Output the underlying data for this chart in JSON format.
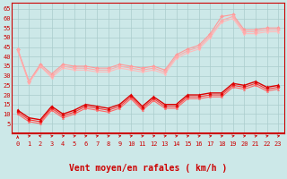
{
  "bg_color": "#cce8e8",
  "grid_color": "#aacccc",
  "xlabel": "Vent moyen/en rafales ( km/h )",
  "x_values": [
    0,
    1,
    2,
    3,
    4,
    5,
    6,
    7,
    8,
    9,
    10,
    11,
    12,
    13,
    14,
    15,
    16,
    17,
    18,
    19,
    20,
    21,
    22,
    23
  ],
  "ylim": [
    0,
    68
  ],
  "yticks": [
    5,
    10,
    15,
    20,
    25,
    30,
    35,
    40,
    45,
    50,
    55,
    60,
    65
  ],
  "series": [
    {
      "name": "gust_max",
      "y": [
        44,
        27,
        36,
        31,
        36,
        35,
        35,
        34,
        34,
        36,
        35,
        34,
        35,
        33,
        41,
        44,
        46,
        52,
        61,
        62,
        54,
        54,
        55,
        55
      ],
      "color": "#ff9999",
      "lw": 0.8,
      "marker": "D",
      "ms": 2.0,
      "zorder": 3
    },
    {
      "name": "gust_mid",
      "y": [
        44,
        27,
        35,
        30,
        35,
        34,
        34,
        33,
        33,
        35,
        34,
        33,
        34,
        32,
        40,
        43,
        45,
        51,
        59,
        61,
        53,
        53,
        54,
        54
      ],
      "color": "#ffaaaa",
      "lw": 0.8,
      "marker": "D",
      "ms": 2.0,
      "zorder": 3
    },
    {
      "name": "gust_low",
      "y": [
        43,
        26,
        35,
        29,
        34,
        33,
        33,
        32,
        32,
        34,
        33,
        32,
        33,
        31,
        39,
        42,
        44,
        50,
        58,
        60,
        52,
        52,
        53,
        53
      ],
      "color": "#ffbbbb",
      "lw": 0.8,
      "marker": "D",
      "ms": 1.5,
      "zorder": 2
    },
    {
      "name": "wind_max",
      "y": [
        12,
        8,
        7,
        14,
        10,
        12,
        15,
        14,
        13,
        15,
        20,
        14,
        19,
        15,
        15,
        20,
        20,
        21,
        21,
        26,
        25,
        27,
        24,
        25
      ],
      "color": "#dd0000",
      "lw": 1.0,
      "marker": "^",
      "ms": 2.5,
      "zorder": 5
    },
    {
      "name": "wind_mid",
      "y": [
        11,
        7,
        6,
        13,
        9,
        11,
        14,
        13,
        12,
        14,
        19,
        13,
        18,
        14,
        14,
        19,
        19,
        20,
        20,
        25,
        24,
        26,
        23,
        24
      ],
      "color": "#ff3333",
      "lw": 0.8,
      "marker": "^",
      "ms": 2.0,
      "zorder": 4
    },
    {
      "name": "wind_low",
      "y": [
        10,
        6,
        5,
        12,
        8,
        10,
        13,
        12,
        11,
        13,
        18,
        12,
        17,
        13,
        13,
        18,
        18,
        19,
        19,
        24,
        23,
        25,
        22,
        23
      ],
      "color": "#ff6666",
      "lw": 0.8,
      "marker": "^",
      "ms": 1.5,
      "zorder": 3
    }
  ],
  "tick_color": "#cc0000",
  "tick_fontsize": 5.0,
  "xlabel_fontsize": 7.0,
  "arrow_angles": [
    0,
    45,
    315,
    45,
    45,
    45,
    45,
    45,
    45,
    45,
    45,
    45,
    45,
    45,
    45,
    45,
    45,
    45,
    45,
    45,
    45,
    45,
    45,
    45
  ]
}
